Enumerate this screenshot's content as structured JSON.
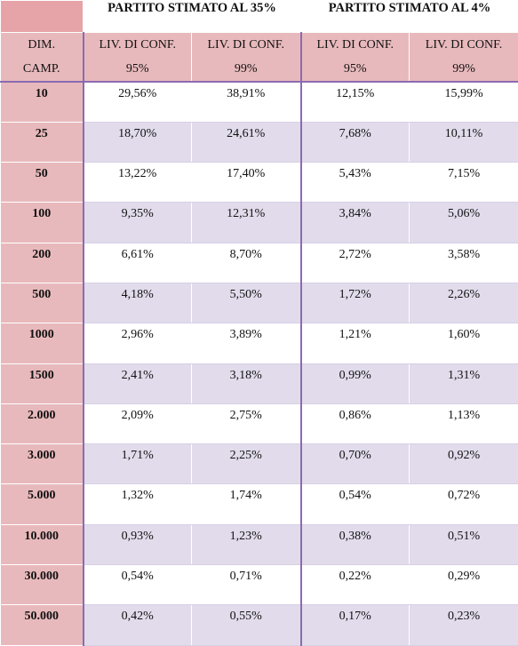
{
  "header": {
    "groups": [
      "PARTITO STIMATO AL 35%",
      "PARTITO STIMATO AL 4%"
    ],
    "dim_label_line1": "DIM.",
    "dim_label_line2": "CAMP.",
    "conf_label": "LIV. DI CONF.",
    "levels": [
      "95%",
      "99%",
      "95%",
      "99%"
    ]
  },
  "rows": [
    {
      "dim": "10",
      "values": [
        "29,56%",
        "38,91%",
        "12,15%",
        "15,99%"
      ]
    },
    {
      "dim": "25",
      "values": [
        "18,70%",
        "24,61%",
        "7,68%",
        "10,11%"
      ]
    },
    {
      "dim": "50",
      "values": [
        "13,22%",
        "17,40%",
        "5,43%",
        "7,15%"
      ]
    },
    {
      "dim": "100",
      "values": [
        "9,35%",
        "12,31%",
        "3,84%",
        "5,06%"
      ]
    },
    {
      "dim": "200",
      "values": [
        "6,61%",
        "8,70%",
        "2,72%",
        "3,58%"
      ]
    },
    {
      "dim": "500",
      "values": [
        "4,18%",
        "5,50%",
        "1,72%",
        "2,26%"
      ]
    },
    {
      "dim": "1000",
      "values": [
        "2,96%",
        "3,89%",
        "1,21%",
        "1,60%"
      ]
    },
    {
      "dim": "1500",
      "values": [
        "2,41%",
        "3,18%",
        "0,99%",
        "1,31%"
      ]
    },
    {
      "dim": "2.000",
      "values": [
        "2,09%",
        "2,75%",
        "0,86%",
        "1,13%"
      ]
    },
    {
      "dim": "3.000",
      "values": [
        "1,71%",
        "2,25%",
        "0,70%",
        "0,92%"
      ]
    },
    {
      "dim": "5.000",
      "values": [
        "1,32%",
        "1,74%",
        "0,54%",
        "0,72%"
      ]
    },
    {
      "dim": "10.000",
      "values": [
        "0,93%",
        "1,23%",
        "0,38%",
        "0,51%"
      ]
    },
    {
      "dim": "30.000",
      "values": [
        "0,54%",
        "0,71%",
        "0,22%",
        "0,29%"
      ]
    },
    {
      "dim": "50.000",
      "values": [
        "0,42%",
        "0,55%",
        "0,17%",
        "0,23%"
      ]
    }
  ],
  "colors": {
    "header_pink": "#e8b9bc",
    "row_lavender": "#e1dbeb",
    "border_purple": "#8a6bb0"
  }
}
